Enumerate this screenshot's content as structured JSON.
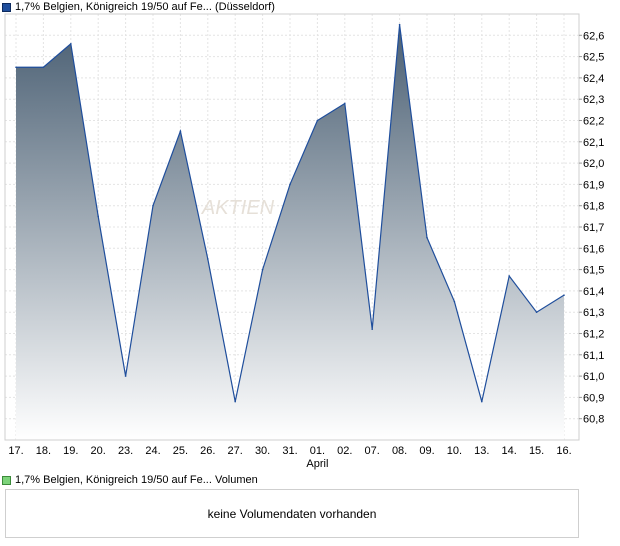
{
  "price_legend": {
    "label": "1,7% Belgien, Königreich 19/50 auf Fe... (Düsseldorf)",
    "color": "#1f4e9c"
  },
  "volume_legend": {
    "label": "1,7% Belgien, Königreich 19/50 auf Fe... Volumen",
    "color": "#7cd37a"
  },
  "volume_message": "keine Volumendaten vorhanden",
  "watermark": "AKTIEN",
  "chart_data": {
    "type": "area",
    "x": [
      "17.",
      "18.",
      "19.",
      "20.",
      "23.",
      "24.",
      "25.",
      "26.",
      "27.",
      "30.",
      "31.",
      "01.",
      "02.",
      "07.",
      "08.",
      "09.",
      "10.",
      "13.",
      "14.",
      "15.",
      "16."
    ],
    "x_month_label": {
      "at": "01.",
      "text": "April"
    },
    "series": [
      {
        "values": [
          62.45,
          62.45,
          62.56,
          61.75,
          61.0,
          61.8,
          62.15,
          61.55,
          60.88,
          61.5,
          61.9,
          62.2,
          62.28,
          61.22,
          62.65,
          61.65,
          61.35,
          60.88,
          61.47,
          61.3,
          61.38
        ]
      }
    ],
    "y_ticks": [
      "62,6",
      "62,5",
      "62,4",
      "62,3",
      "62,2",
      "62,1",
      "62,0",
      "61,9",
      "61,8",
      "61,7",
      "61,6",
      "61,5",
      "61,4",
      "61,3",
      "61,2",
      "61,1",
      "61,0",
      "60,9",
      "60,8"
    ],
    "ylim": [
      60.7,
      62.7
    ],
    "grid": true,
    "line_color": "#1f4e9c",
    "fill_top_color": "#4a5f73",
    "fill_bottom_color": "#ffffff"
  }
}
